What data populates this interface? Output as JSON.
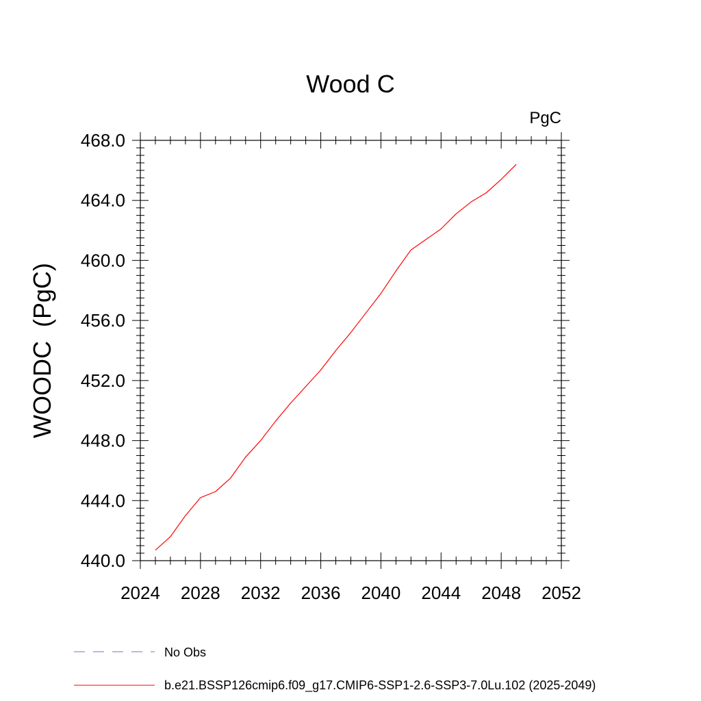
{
  "chart_data": {
    "type": "line",
    "title": "Wood C",
    "units_label": "PgC",
    "ylabel": "WOODC  (PgC)",
    "xlabel": "",
    "xlim": [
      2024,
      2052
    ],
    "ylim": [
      440,
      468
    ],
    "x_ticks": [
      2024,
      2028,
      2032,
      2036,
      2040,
      2044,
      2048,
      2052
    ],
    "x_tick_labels": [
      "2024",
      "2028",
      "2032",
      "2036",
      "2040",
      "2044",
      "2048",
      "2052"
    ],
    "x_minor_step": 1,
    "y_ticks": [
      440,
      444,
      448,
      452,
      456,
      460,
      464,
      468
    ],
    "y_tick_labels": [
      "440.0",
      "444.0",
      "448.0",
      "452.0",
      "456.0",
      "460.0",
      "464.0",
      "468.0"
    ],
    "y_minor_step": 0.5,
    "grid": false,
    "legend_position": "bottom",
    "series": [
      {
        "name": "b.e21.BSSP126cmip6.f09_g17.CMIP6-SSP1-2.6-SSP3-7.0Lu.102 (2025-2049)",
        "color": "#ff0000",
        "style": "solid",
        "x": [
          2025,
          2026,
          2027,
          2028,
          2029,
          2030,
          2031,
          2032,
          2033,
          2034,
          2035,
          2036,
          2037,
          2038,
          2039,
          2040,
          2041,
          2042,
          2043,
          2044,
          2045,
          2046,
          2047,
          2048,
          2049
        ],
        "values": [
          440.7,
          441.6,
          443.0,
          444.2,
          444.6,
          445.5,
          446.9,
          448.0,
          449.3,
          450.5,
          451.6,
          452.7,
          454.0,
          455.2,
          456.5,
          457.8,
          459.3,
          460.7,
          461.4,
          462.1,
          463.1,
          463.9,
          464.5,
          465.4,
          466.4
        ]
      }
    ],
    "legend_entries": [
      {
        "label": "No Obs",
        "color": "#7a6fbf",
        "style": "dashed"
      },
      {
        "label": "b.e21.BSSP126cmip6.f09_g17.CMIP6-SSP1-2.6-SSP3-7.0Lu.102 (2025-2049)",
        "color": "#ff0000",
        "style": "solid"
      }
    ]
  }
}
